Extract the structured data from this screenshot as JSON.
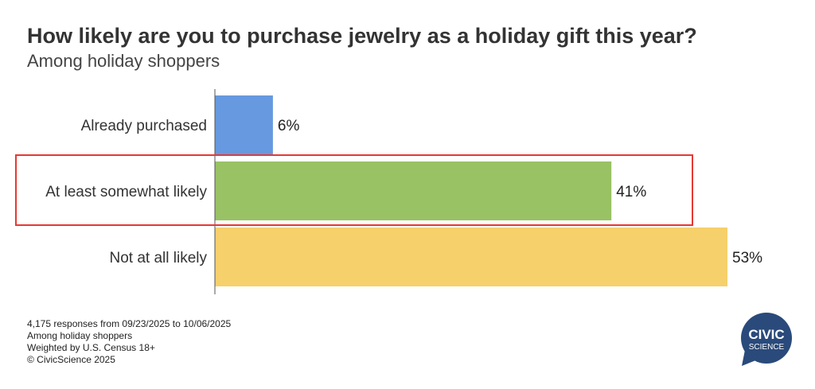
{
  "chart_data": {
    "type": "bar",
    "orientation": "horizontal",
    "title": "How likely are you to purchase jewelry as a holiday gift this year?",
    "subtitle": "Among holiday shoppers",
    "categories": [
      "Already purchased",
      "At least somewhat likely",
      "Not at all likely"
    ],
    "values": [
      6,
      41,
      53
    ],
    "data_labels": [
      "6%",
      "41%",
      "53%"
    ],
    "colors": [
      "#6699e0",
      "#99c264",
      "#f6d06b"
    ],
    "highlight_index": 1,
    "highlight_color": "#e53935",
    "xlim": [
      0,
      53
    ],
    "xlabel": "",
    "ylabel": "",
    "grid": false
  },
  "footer": {
    "lines": [
      "4,175 responses from 09/23/2025 to 10/06/2025",
      "Among holiday shoppers",
      "Weighted by U.S. Census 18+",
      "© CivicScience 2025"
    ]
  },
  "logo": {
    "line1": "CIVIC",
    "line2": "SCIENCE",
    "color": "#2a4a7b"
  }
}
